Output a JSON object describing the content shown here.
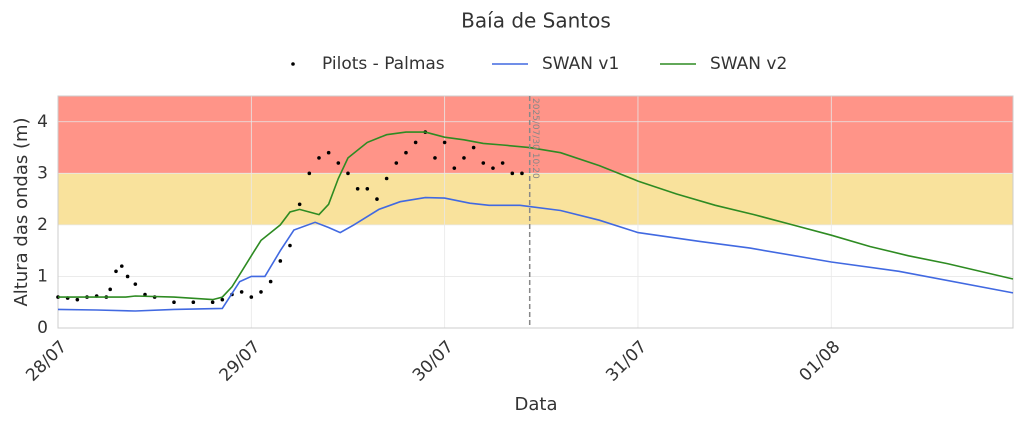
{
  "chart_data": {
    "type": "line",
    "title": "Baía de Santos",
    "x_label": "Data",
    "y_label": "Altura das ondas (m)",
    "xlim": [
      0,
      4.94
    ],
    "ylim": [
      0,
      4.5
    ],
    "xticks": [
      {
        "value": 0,
        "label": "28/07"
      },
      {
        "value": 1,
        "label": "29/07"
      },
      {
        "value": 2,
        "label": "30/07"
      },
      {
        "value": 3,
        "label": "31/07"
      },
      {
        "value": 4,
        "label": "01/08"
      }
    ],
    "yticks": [
      0,
      1,
      2,
      3,
      4
    ],
    "grid": true,
    "legend": "top",
    "bands": [
      {
        "from": 3,
        "to": 4.5,
        "color": "#ff9488"
      },
      {
        "from": 2,
        "to": 3,
        "color": "#f9e29c"
      }
    ],
    "vline": {
      "x": 2.44,
      "label": "2025/07/30 10:20",
      "color": "#888888"
    },
    "series": [
      {
        "name": "Pilots - Palmas",
        "kind": "scatter",
        "color": "#000000",
        "x": [
          0,
          0.05,
          0.1,
          0.15,
          0.2,
          0.25,
          0.27,
          0.3,
          0.33,
          0.36,
          0.4,
          0.45,
          0.5,
          0.6,
          0.7,
          0.8,
          0.85,
          0.9,
          0.95,
          1.0,
          1.05,
          1.1,
          1.15,
          1.2,
          1.25,
          1.3,
          1.35,
          1.4,
          1.45,
          1.5,
          1.55,
          1.6,
          1.65,
          1.7,
          1.75,
          1.8,
          1.85,
          1.9,
          1.95,
          2.0,
          2.05,
          2.1,
          2.15,
          2.2,
          2.25,
          2.3,
          2.35,
          2.4
        ],
        "values": [
          0.6,
          0.58,
          0.55,
          0.6,
          0.62,
          0.6,
          0.75,
          1.1,
          1.2,
          1.0,
          0.85,
          0.65,
          0.6,
          0.5,
          0.5,
          0.5,
          0.55,
          0.65,
          0.7,
          0.6,
          0.7,
          0.9,
          1.3,
          1.6,
          2.4,
          3.0,
          3.3,
          3.4,
          3.2,
          3.0,
          2.7,
          2.7,
          2.5,
          2.9,
          3.2,
          3.4,
          3.6,
          3.8,
          3.3,
          3.6,
          3.1,
          3.3,
          3.5,
          3.2,
          3.1,
          3.2,
          3.0,
          3.0
        ]
      },
      {
        "name": "SWAN v1",
        "kind": "line",
        "color": "#4169e1",
        "x": [
          0,
          0.2,
          0.4,
          0.6,
          0.85,
          0.94,
          1.0,
          1.07,
          1.15,
          1.22,
          1.33,
          1.4,
          1.46,
          1.53,
          1.66,
          1.77,
          1.9,
          2.0,
          2.13,
          2.23,
          2.39,
          2.6,
          2.8,
          3.0,
          3.32,
          3.58,
          4.0,
          4.35,
          4.94
        ],
        "values": [
          0.36,
          0.35,
          0.33,
          0.36,
          0.38,
          0.9,
          1.0,
          1.0,
          1.5,
          1.9,
          2.05,
          1.95,
          1.85,
          2.0,
          2.3,
          2.45,
          2.53,
          2.52,
          2.42,
          2.38,
          2.38,
          2.28,
          2.09,
          1.85,
          1.68,
          1.55,
          1.28,
          1.1,
          0.68
        ]
      },
      {
        "name": "SWAN v2",
        "kind": "line",
        "color": "#2e8b22",
        "x": [
          0,
          0.35,
          0.4,
          0.6,
          0.8,
          0.85,
          0.9,
          0.95,
          1.0,
          1.05,
          1.1,
          1.15,
          1.2,
          1.25,
          1.3,
          1.35,
          1.4,
          1.45,
          1.5,
          1.6,
          1.7,
          1.8,
          1.9,
          2.0,
          2.1,
          2.2,
          2.3,
          2.44,
          2.6,
          2.8,
          3.0,
          3.2,
          3.4,
          3.6,
          3.8,
          4.0,
          4.2,
          4.4,
          4.6,
          4.94
        ],
        "values": [
          0.6,
          0.6,
          0.62,
          0.6,
          0.55,
          0.6,
          0.8,
          1.1,
          1.4,
          1.7,
          1.85,
          2.0,
          2.25,
          2.3,
          2.25,
          2.2,
          2.4,
          2.9,
          3.3,
          3.6,
          3.75,
          3.8,
          3.8,
          3.7,
          3.65,
          3.58,
          3.55,
          3.5,
          3.4,
          3.15,
          2.85,
          2.6,
          2.38,
          2.2,
          2.0,
          1.8,
          1.58,
          1.4,
          1.25,
          0.95
        ]
      }
    ]
  }
}
